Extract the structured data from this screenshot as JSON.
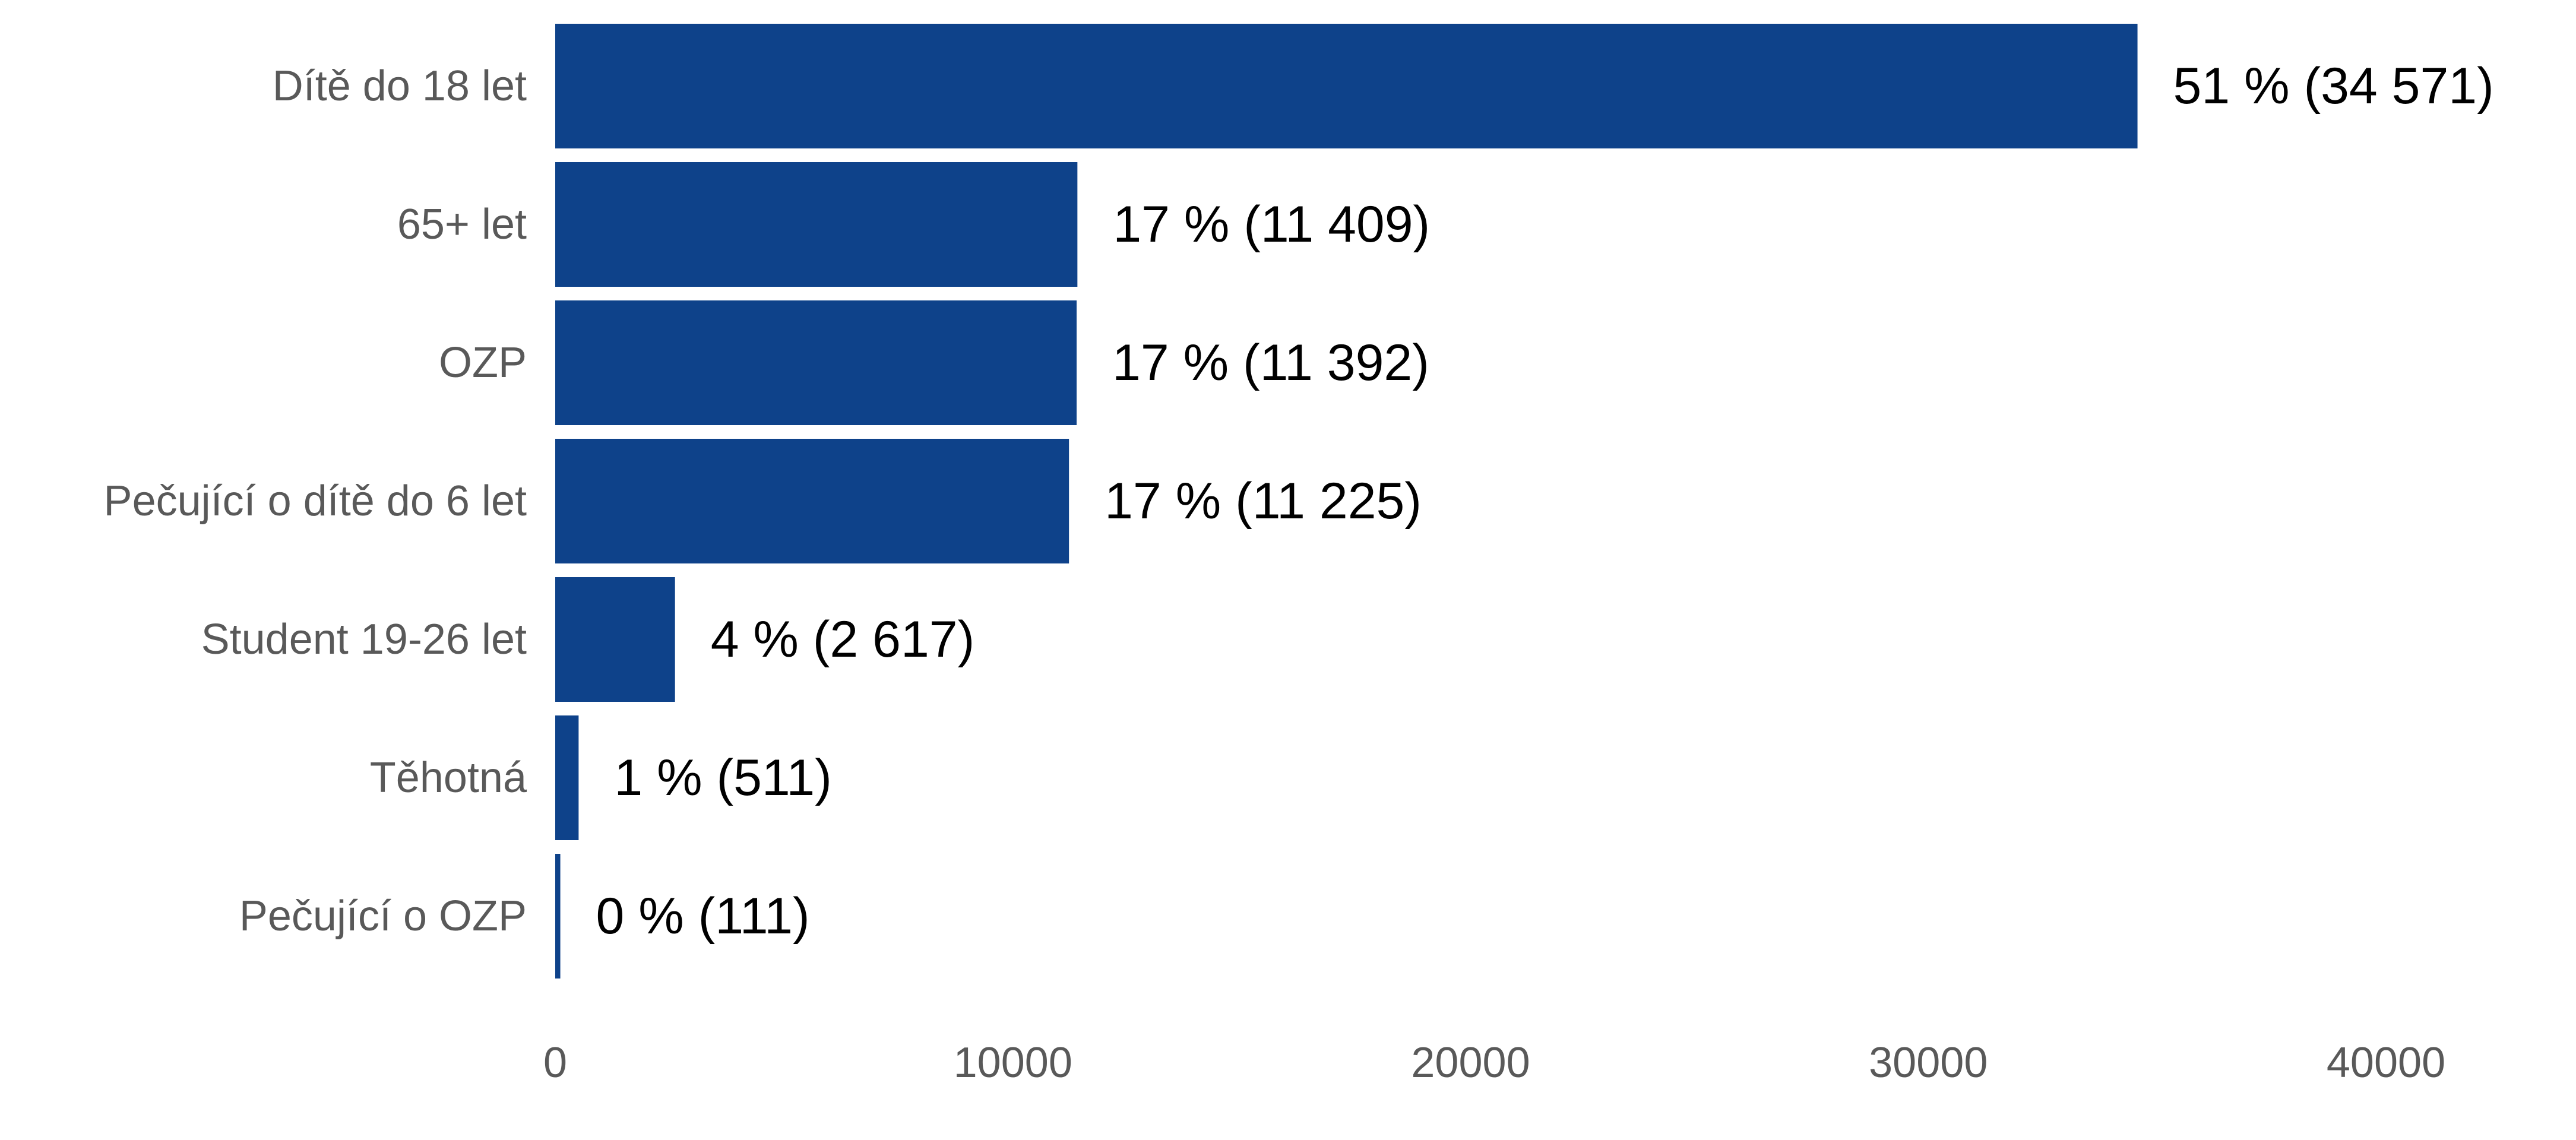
{
  "chart_data": {
    "type": "bar",
    "orientation": "horizontal",
    "categories": [
      "Dítě do 18 let",
      "65+ let",
      "OZP",
      "Pečující o dítě do 6 let",
      "Student 19-26 let",
      "Těhotná",
      "Pečující o OZP"
    ],
    "values": [
      34571,
      11409,
      11392,
      11225,
      2617,
      511,
      111
    ],
    "data_labels": [
      "51 % (34 571)",
      "17 % (11 409)",
      "17 % (11 392)",
      "17 % (11 225)",
      "4 % (2 617)",
      "1 % (511)",
      "0 % (111)"
    ],
    "xlim": [
      0,
      40000
    ],
    "xticks": [
      0,
      10000,
      20000,
      30000,
      40000
    ],
    "xtick_labels": [
      "0",
      "10000",
      "20000",
      "30000",
      "40000"
    ],
    "title": "",
    "xlabel": "",
    "ylabel": "",
    "grid": false,
    "legend": "none",
    "bar_color": "#0E428A"
  }
}
